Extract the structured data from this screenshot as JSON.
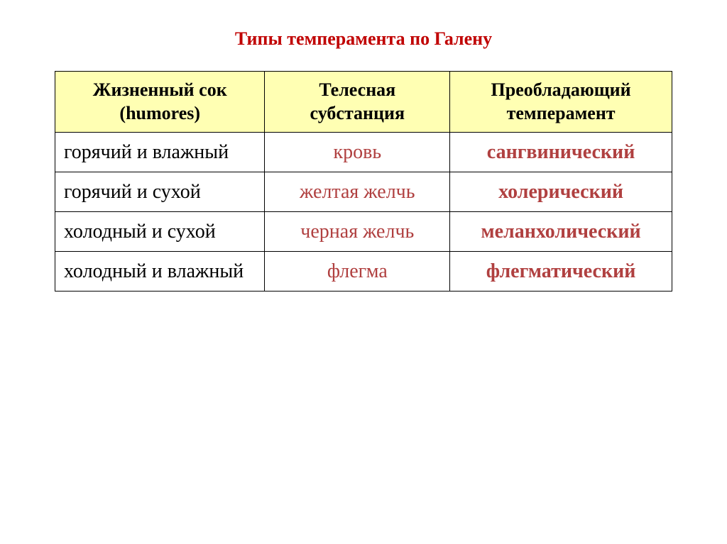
{
  "title": {
    "text": "Типы темперамента по Галену",
    "color": "#c00000",
    "fontsize": 26
  },
  "table": {
    "header_bg": "#ffffb3",
    "header_color": "#000000",
    "header_fontsize": 26,
    "header_fontweight": "bold",
    "body_fontsize": 28,
    "col1_color": "#000000",
    "col1_fontweight": "normal",
    "col2_color": "#b04040",
    "col2_fontweight": "normal",
    "col3_color": "#b04040",
    "col3_fontweight": "bold",
    "col_widths": [
      "34%",
      "30%",
      "36%"
    ],
    "columns": [
      {
        "line1": "Жизненный сок",
        "line2": "(humores)"
      },
      {
        "line1": "Телесная",
        "line2": "субстанция"
      },
      {
        "line1": "Преобладающий",
        "line2": "темперамент"
      }
    ],
    "rows": [
      {
        "humor": "горячий и влажный",
        "substance": "кровь",
        "temperament": "сангвинический"
      },
      {
        "humor": "горячий и сухой",
        "substance": "желтая желчь",
        "temperament": "холерический"
      },
      {
        "humor": "холодный и сухой",
        "substance": "черная желчь",
        "temperament": "меланхолический"
      },
      {
        "humor": "холодный и влажный",
        "substance": "флегма",
        "temperament": "флегматический"
      }
    ]
  }
}
